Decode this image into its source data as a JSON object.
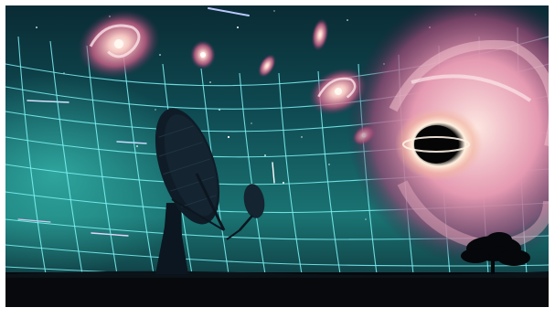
{
  "scene": {
    "subject": "illustration",
    "colors": {
      "space_dark": "#06121f",
      "space_teal": "#1a6e70",
      "grid_line": "#7ff3f6",
      "galaxy_pink": "#e7a3b6",
      "galaxy_core": "#fff3e8",
      "black_hole": "#050505",
      "ground": "#07090d",
      "antenna": "#0c1620",
      "frame": "#ffffff"
    },
    "elements": [
      "frame",
      "starfield",
      "spacetime-grid",
      "spiral-galaxies",
      "black-hole-galaxy",
      "radio-telescope",
      "small-dish",
      "tree-silhouette",
      "ground"
    ]
  }
}
